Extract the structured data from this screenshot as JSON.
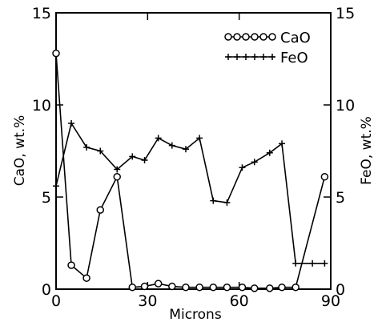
{
  "chart_data": {
    "type": "line",
    "xlabel": "Microns",
    "ylabel_left": "CaO, wt.%",
    "ylabel_right": "FeO, wt.%",
    "xlim": [
      0,
      90
    ],
    "ylim_left": [
      0,
      15
    ],
    "ylim_right": [
      0,
      15
    ],
    "x_ticks": [
      0,
      30,
      60,
      90
    ],
    "y_ticks_left": [
      0,
      5,
      10,
      15
    ],
    "y_ticks_right": [
      0,
      5,
      10,
      15
    ],
    "legend_position": "top-right",
    "grid": false,
    "series": [
      {
        "name": "CaO",
        "marker": "circle",
        "x": [
          0,
          5,
          10,
          14.5,
          20,
          25,
          29,
          33.5,
          38,
          42.5,
          47,
          51.5,
          56,
          61,
          65,
          70,
          74,
          78.5,
          88
        ],
        "y": [
          12.8,
          1.3,
          0.6,
          4.3,
          6.1,
          0.1,
          0.15,
          0.3,
          0.15,
          0.1,
          0.1,
          0.1,
          0.1,
          0.1,
          0.05,
          0.05,
          0.1,
          0.1,
          6.1
        ]
      },
      {
        "name": "FeO",
        "marker": "plus",
        "x": [
          0,
          5,
          10,
          14.5,
          20,
          25,
          29,
          33.5,
          38,
          42.5,
          47,
          51.5,
          56,
          61,
          65,
          70,
          74,
          78.5,
          84,
          88
        ],
        "y": [
          5.6,
          9.0,
          7.7,
          7.5,
          6.5,
          7.2,
          7.0,
          8.2,
          7.8,
          7.6,
          8.2,
          4.8,
          4.7,
          6.6,
          6.9,
          7.4,
          7.9,
          1.4,
          1.4,
          1.4
        ]
      }
    ]
  }
}
